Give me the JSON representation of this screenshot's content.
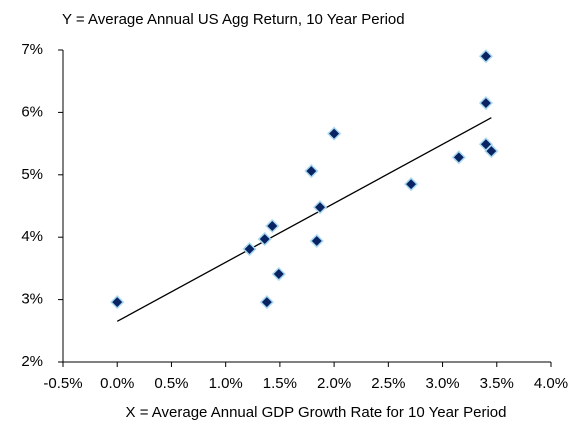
{
  "chart_data": {
    "type": "scatter",
    "title": "Y = Average Annual US Agg Return, 10 Year Period",
    "x_label": "X =  Average Annual GDP Growth Rate for 10 Year Period",
    "series": [
      {
        "color": "#0a2463",
        "edge_color": "#a8d8f0",
        "x": [
          0.0,
          1.22,
          1.49,
          1.36,
          1.43,
          1.38,
          1.79,
          1.84,
          1.87,
          2.0,
          2.71,
          3.15,
          3.4,
          3.4,
          3.4,
          3.45
        ],
        "values": [
          2.96,
          3.81,
          3.41,
          3.97,
          4.18,
          2.96,
          5.06,
          3.94,
          4.48,
          5.66,
          4.85,
          5.28,
          6.9,
          6.15,
          5.49,
          5.38
        ]
      }
    ],
    "trendline": true,
    "xlim": [
      -0.5,
      4.0
    ],
    "xticks": [
      {
        "value": -0.5,
        "label": "-0.5%"
      },
      {
        "value": 0,
        "label": "0.0%"
      },
      {
        "value": 0.5,
        "label": "0.5%"
      },
      {
        "value": 1,
        "label": "1.0%"
      },
      {
        "value": 1.5,
        "label": "1.5%"
      },
      {
        "value": 2,
        "label": "2.0%"
      },
      {
        "value": 2.5,
        "label": "2.5%"
      },
      {
        "value": 3,
        "label": "3.0%"
      },
      {
        "value": 3.5,
        "label": "3.5%"
      },
      {
        "value": 4,
        "label": "4.0%"
      }
    ],
    "ylim": [
      2,
      7
    ],
    "yticks": [
      {
        "value": 2,
        "label": "2%"
      },
      {
        "value": 3,
        "label": "3%"
      },
      {
        "value": 4,
        "label": "4%"
      },
      {
        "value": 5,
        "label": "5%"
      },
      {
        "value": 6,
        "label": "6%"
      },
      {
        "value": 7,
        "label": "7%"
      }
    ],
    "grid": false
  }
}
